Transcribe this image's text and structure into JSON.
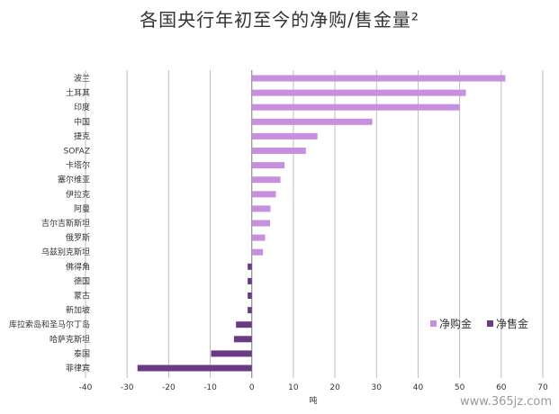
{
  "chart_data": {
    "type": "bar",
    "orientation": "horizontal",
    "title": "各国央行年初至今的净购/售金量²",
    "xlabel": "吨",
    "ylabel": "",
    "xlim": [
      -40,
      70
    ],
    "xticks": [
      -40,
      -30,
      -20,
      -10,
      0,
      10,
      20,
      30,
      40,
      50,
      60,
      70
    ],
    "grid": true,
    "legend_position": "bottom-right",
    "categories": [
      "波兰",
      "土耳其",
      "印度",
      "中国",
      "捷克",
      "SOFAZ",
      "卡塔尔",
      "塞尔维亚",
      "伊拉克",
      "阿曼",
      "吉尔吉斯斯坦",
      "俄罗斯",
      "乌兹别克斯坦",
      "佛得角",
      "德国",
      "蒙古",
      "新加坡",
      "库拉索岛和圣马尔丁岛",
      "哈萨克斯坦",
      "泰国",
      "菲律宾"
    ],
    "values": [
      61,
      51.5,
      50,
      29,
      15.8,
      13,
      7.9,
      6.9,
      5.8,
      4.5,
      4.4,
      3.2,
      2.7,
      -1,
      -1,
      -1,
      -1,
      -3.8,
      -4.3,
      -9.8,
      -27.5
    ],
    "series": [
      {
        "name": "净购金",
        "color": "#c68fe0"
      },
      {
        "name": "净售金",
        "color": "#6b3a85"
      }
    ]
  },
  "watermark": "www.365jz.com"
}
